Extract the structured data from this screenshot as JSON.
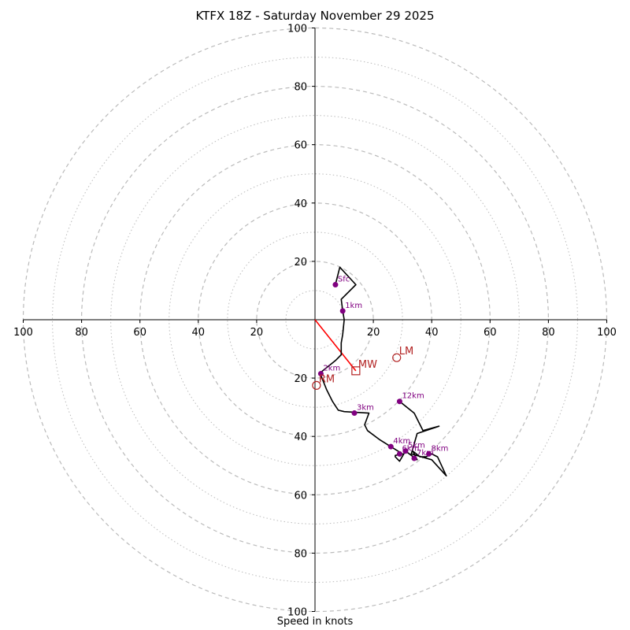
{
  "title": "KTFX 18Z - Saturday November 29 2025",
  "xlabel": "Speed in knots",
  "chart_data": {
    "type": "hodograph",
    "title": "KTFX 18Z - Saturday November 29 2025",
    "xlabel": "Speed in knots",
    "ylabel": "",
    "xlim": [
      -100,
      100
    ],
    "ylim": [
      -100,
      100
    ],
    "ring_spacing_major": 20,
    "ring_spacing_minor": 10,
    "x_tick_labels": [
      "100",
      "80",
      "60",
      "40",
      "20",
      "20",
      "40",
      "60",
      "80",
      "100"
    ],
    "x_tick_values": [
      -100,
      -80,
      -60,
      -40,
      -20,
      20,
      40,
      60,
      80,
      100
    ],
    "y_tick_labels": [
      "100",
      "80",
      "60",
      "40",
      "20",
      "20",
      "40",
      "60",
      "80",
      "100"
    ],
    "y_tick_values": [
      100,
      80,
      60,
      40,
      20,
      -20,
      -40,
      -60,
      -80,
      -100
    ],
    "colors": {
      "trace": "#000000",
      "height_markers": "#800080",
      "motion": "#b22222",
      "mean_wind_line": "#ff0000",
      "grid": "#bbbbbb"
    },
    "trace": [
      [
        7,
        12
      ],
      [
        8.5,
        18
      ],
      [
        14,
        12
      ],
      [
        9,
        7
      ],
      [
        9.5,
        3
      ],
      [
        10,
        0
      ],
      [
        9.5,
        -5
      ],
      [
        9,
        -8
      ],
      [
        9,
        -12
      ],
      [
        7,
        -14
      ],
      [
        2,
        -18
      ],
      [
        2,
        -19
      ],
      [
        4,
        -24
      ],
      [
        6,
        -28
      ],
      [
        8,
        -31
      ],
      [
        10,
        -31.5
      ],
      [
        18.5,
        -32
      ],
      [
        17,
        -36
      ],
      [
        18,
        -38
      ],
      [
        22,
        -41
      ],
      [
        26,
        -43.5
      ],
      [
        30,
        -46
      ],
      [
        27.5,
        -46.5
      ],
      [
        27.5,
        -47
      ],
      [
        29,
        -48.5
      ],
      [
        31,
        -45
      ],
      [
        35,
        -48
      ],
      [
        33.5,
        -45
      ],
      [
        36,
        -47
      ],
      [
        38,
        -47
      ],
      [
        40,
        -46
      ],
      [
        42,
        -47
      ],
      [
        45,
        -53.5
      ],
      [
        40,
        -48
      ],
      [
        33,
        -46
      ],
      [
        35,
        -39
      ],
      [
        42.5,
        -36.5
      ],
      [
        37,
        -38
      ],
      [
        36,
        -36
      ],
      [
        34,
        -32
      ],
      [
        29,
        -28
      ]
    ],
    "height_markers": [
      {
        "label": "Sfc",
        "u": 7,
        "v": 12
      },
      {
        "label": "1km",
        "u": 9.5,
        "v": 3
      },
      {
        "label": "2km",
        "u": 2,
        "v": -18.5
      },
      {
        "label": "3km",
        "u": 13.5,
        "v": -32
      },
      {
        "label": "4km",
        "u": 26,
        "v": -43.5
      },
      {
        "label": "5km",
        "u": 31,
        "v": -45
      },
      {
        "label": "6km",
        "u": 29,
        "v": -46
      },
      {
        "label": "7km",
        "u": 34,
        "v": -47.5
      },
      {
        "label": "8km",
        "u": 39,
        "v": -46
      },
      {
        "label": "12km",
        "u": 29,
        "v": -28
      }
    ],
    "storm_motion": [
      {
        "label": "LM",
        "u": 28,
        "v": -13,
        "marker": "circle"
      },
      {
        "label": "MW",
        "u": 14,
        "v": -17.5,
        "marker": "square"
      },
      {
        "label": "RM",
        "u": 0.5,
        "v": -22.5,
        "marker": "circle"
      }
    ],
    "mean_wind_vector": {
      "from": [
        0,
        0
      ],
      "to": [
        14,
        -17.5
      ]
    }
  }
}
